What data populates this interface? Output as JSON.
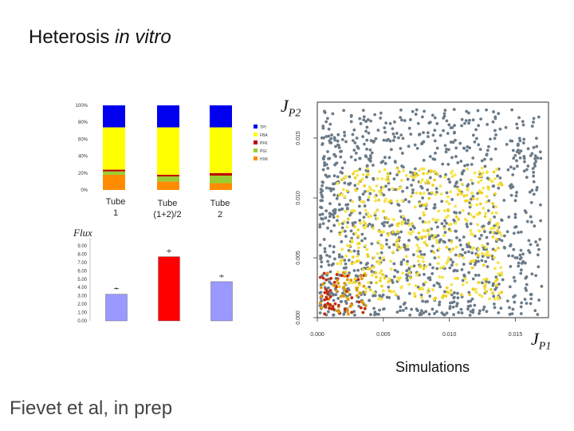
{
  "slide": {
    "title_plain": "Heterosis",
    "title_italic": "in vitro",
    "credit": "Fievet et al, in prep",
    "simulations_label": "Simulations",
    "flux_label": "Flux",
    "jp2_main": "J",
    "jp2_sub": "P2",
    "jp1_main": "J",
    "jp1_sub": "P1"
  },
  "chart_data": [
    {
      "type": "bar",
      "stacked": true,
      "categories": [
        "Tube 1",
        "Tube (1+2)/2",
        "Tube 2"
      ],
      "category_lines": [
        [
          "Tube",
          "1"
        ],
        [
          "Tube",
          "(1+2)/2"
        ],
        [
          "Tube",
          "2"
        ]
      ],
      "y_ticks": [
        "0%",
        "20%",
        "40%",
        "60%",
        "80%",
        "100%"
      ],
      "ylim": [
        0,
        100
      ],
      "legend_labels": [
        "TPI",
        "FBA",
        "PFK",
        "PGI",
        "HXK"
      ],
      "legend_position": "right",
      "series": [
        {
          "name": "HXK",
          "color": "#ff8c00",
          "values": [
            18,
            10,
            8
          ]
        },
        {
          "name": "PGI",
          "color": "#9acd32",
          "values": [
            4,
            6,
            9
          ]
        },
        {
          "name": "PFK",
          "color": "#c00000",
          "values": [
            2,
            2,
            3
          ]
        },
        {
          "name": "FBA",
          "color": "#ffff00",
          "values": [
            50,
            56,
            54
          ]
        },
        {
          "name": "TPI",
          "color": "#0000ee",
          "values": [
            26,
            26,
            26
          ]
        }
      ]
    },
    {
      "type": "bar",
      "categories": [
        "Tube 1",
        "Tube (1+2)/2",
        "Tube 2"
      ],
      "values": [
        3.2,
        7.7,
        4.7
      ],
      "errors": [
        0.05,
        0.15,
        0.1
      ],
      "colors": [
        "#9999ff",
        "#ff0000",
        "#9999ff"
      ],
      "ylim": [
        0,
        9
      ],
      "y_ticks": [
        "0.00",
        "1.00",
        "2.00",
        "3.00",
        "4.00",
        "5.00",
        "6.00",
        "7.00",
        "8.00",
        "9.00"
      ],
      "ylabel": "Flux"
    },
    {
      "type": "scatter",
      "xlabel": "JP1",
      "ylabel": "JP2",
      "xlim": [
        0,
        0.0175
      ],
      "ylim": [
        0,
        0.018
      ],
      "x_ticks": [
        "0.000",
        "0.005",
        "0.010",
        "0.015"
      ],
      "y_ticks": [
        "0.000",
        "0.005",
        "0.010",
        "0.015"
      ],
      "x_tick_values": [
        0,
        0.005,
        0.01,
        0.015
      ],
      "y_tick_values": [
        0,
        0.005,
        0.01,
        0.015
      ],
      "point_colors": [
        "#6b7b88",
        "#f5e44a",
        "#f0d020",
        "#d89a10",
        "#c02a10"
      ],
      "sample_points": [
        {
          "x": 0.0008,
          "y": 0.0012,
          "color": "#c02a10"
        },
        {
          "x": 0.002,
          "y": 0.0018,
          "color": "#d89a10"
        },
        {
          "x": 0.006,
          "y": 0.006,
          "color": "#f5e44a"
        },
        {
          "x": 0.01,
          "y": 0.0095,
          "color": "#f5e44a"
        },
        {
          "x": 0.003,
          "y": 0.015,
          "color": "#6b7b88"
        },
        {
          "x": 0.015,
          "y": 0.005,
          "color": "#6b7b88"
        }
      ]
    }
  ]
}
